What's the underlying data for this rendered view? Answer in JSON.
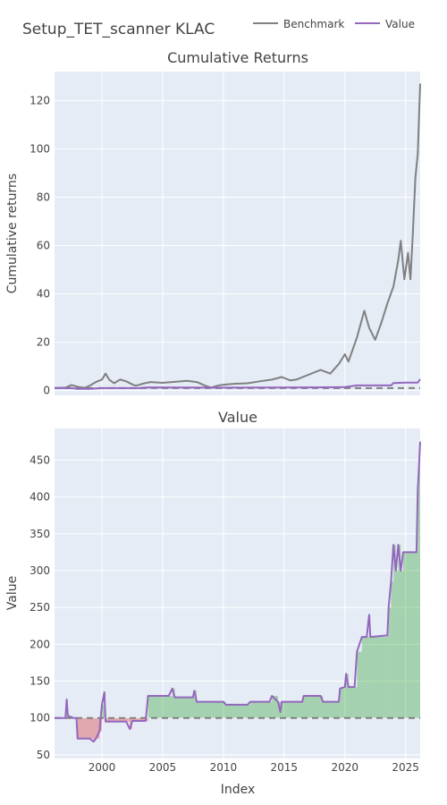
{
  "chart_data": {
    "title": "Setup_TET_scanner KLAC",
    "legend": {
      "placement": "top-right",
      "entries": [
        {
          "label": "Benchmark",
          "color": "#808080"
        },
        {
          "label": "Value",
          "color": "#9467bd"
        }
      ]
    },
    "xlabel": "Index",
    "x_ticks": [
      "2000",
      "2005",
      "2010",
      "2015",
      "2020",
      "2025"
    ],
    "xlim": [
      1996.1,
      2026.2
    ],
    "panels": [
      {
        "type": "line",
        "title": "Cumulative Returns",
        "ylabel": "Cumulative returns",
        "ylim": [
          -2,
          132
        ],
        "y_ticks": [
          0,
          20,
          40,
          60,
          80,
          100,
          120
        ],
        "baseline": 1,
        "grid": true,
        "series": [
          {
            "name": "Benchmark",
            "color": "#808080",
            "points": [
              [
                1996.1,
                1.0
              ],
              [
                1997.0,
                1.2
              ],
              [
                1997.5,
                2.3
              ],
              [
                1998.0,
                1.5
              ],
              [
                1998.6,
                1.1
              ],
              [
                1999.0,
                2.0
              ],
              [
                1999.5,
                3.5
              ],
              [
                2000.0,
                4.5
              ],
              [
                2000.3,
                7.0
              ],
              [
                2000.6,
                4.5
              ],
              [
                2001.0,
                3.0
              ],
              [
                2001.5,
                4.5
              ],
              [
                2002.0,
                3.8
              ],
              [
                2002.5,
                2.5
              ],
              [
                2002.8,
                2.0
              ],
              [
                2003.5,
                3.0
              ],
              [
                2004.0,
                3.5
              ],
              [
                2005.0,
                3.2
              ],
              [
                2006.0,
                3.6
              ],
              [
                2007.0,
                4.0
              ],
              [
                2007.8,
                3.5
              ],
              [
                2008.5,
                2.0
              ],
              [
                2009.0,
                1.2
              ],
              [
                2009.5,
                2.0
              ],
              [
                2010.0,
                2.4
              ],
              [
                2011.0,
                2.8
              ],
              [
                2012.0,
                3.0
              ],
              [
                2013.0,
                3.8
              ],
              [
                2014.0,
                4.5
              ],
              [
                2014.8,
                5.6
              ],
              [
                2015.5,
                4.2
              ],
              [
                2016.0,
                4.5
              ],
              [
                2017.0,
                6.5
              ],
              [
                2018.0,
                8.5
              ],
              [
                2018.8,
                7.0
              ],
              [
                2019.5,
                11.0
              ],
              [
                2020.0,
                15.0
              ],
              [
                2020.3,
                12.0
              ],
              [
                2021.0,
                22.0
              ],
              [
                2021.6,
                33.0
              ],
              [
                2022.0,
                26.0
              ],
              [
                2022.5,
                21.0
              ],
              [
                2023.0,
                28.0
              ],
              [
                2023.5,
                36.0
              ],
              [
                2024.0,
                43.0
              ],
              [
                2024.4,
                54.0
              ],
              [
                2024.6,
                62.0
              ],
              [
                2024.9,
                46.0
              ],
              [
                2025.2,
                57.0
              ],
              [
                2025.4,
                46.0
              ],
              [
                2025.6,
                65.0
              ],
              [
                2025.8,
                88.0
              ],
              [
                2026.0,
                98.0
              ],
              [
                2026.2,
                127.0
              ]
            ]
          },
          {
            "name": "Value",
            "color": "#9467bd",
            "points": [
              [
                1996.1,
                1.0
              ],
              [
                1997.5,
                1.0
              ],
              [
                1998.0,
                0.7
              ],
              [
                1999.0,
                0.7
              ],
              [
                2000.0,
                1.0
              ],
              [
                2003.0,
                1.0
              ],
              [
                2003.8,
                1.3
              ],
              [
                2010.0,
                1.2
              ],
              [
                2017.0,
                1.3
              ],
              [
                2020.0,
                1.4
              ],
              [
                2021.0,
                2.1
              ],
              [
                2023.8,
                2.1
              ],
              [
                2024.0,
                3.1
              ],
              [
                2025.0,
                3.3
              ],
              [
                2026.0,
                3.3
              ],
              [
                2026.2,
                4.7
              ]
            ]
          }
        ]
      },
      {
        "type": "line",
        "title": "Value",
        "ylabel": "Value",
        "ylim": [
          45,
          493
        ],
        "y_ticks": [
          50,
          100,
          150,
          200,
          250,
          300,
          350,
          400,
          450
        ],
        "baseline": 100,
        "grid": true,
        "series": [
          {
            "name": "Value",
            "color": "#9467bd",
            "points": [
              [
                1996.1,
                100
              ],
              [
                1997.0,
                100
              ],
              [
                1997.1,
                125
              ],
              [
                1997.2,
                103
              ],
              [
                1997.6,
                100
              ],
              [
                1997.9,
                100
              ],
              [
                1998.0,
                72
              ],
              [
                1999.0,
                72
              ],
              [
                1999.3,
                68
              ],
              [
                1999.5,
                72
              ],
              [
                1999.8,
                82
              ],
              [
                2000.0,
                118
              ],
              [
                2000.2,
                135
              ],
              [
                2000.3,
                95
              ],
              [
                2002.0,
                95
              ],
              [
                2002.3,
                85
              ],
              [
                2002.5,
                96
              ],
              [
                2003.0,
                96
              ],
              [
                2003.6,
                96
              ],
              [
                2003.8,
                130
              ],
              [
                2005.5,
                130
              ],
              [
                2005.8,
                140
              ],
              [
                2006.0,
                128
              ],
              [
                2007.5,
                128
              ],
              [
                2007.6,
                137
              ],
              [
                2007.8,
                122
              ],
              [
                2010.0,
                122
              ],
              [
                2010.2,
                118
              ],
              [
                2012.0,
                118
              ],
              [
                2012.2,
                122
              ],
              [
                2013.8,
                122
              ],
              [
                2014.0,
                130
              ],
              [
                2014.5,
                122
              ],
              [
                2014.7,
                108
              ],
              [
                2014.8,
                122
              ],
              [
                2016.5,
                122
              ],
              [
                2016.6,
                130
              ],
              [
                2018.0,
                130
              ],
              [
                2018.2,
                122
              ],
              [
                2019.5,
                122
              ],
              [
                2019.6,
                140
              ],
              [
                2020.0,
                142
              ],
              [
                2020.1,
                160
              ],
              [
                2020.3,
                142
              ],
              [
                2020.8,
                142
              ],
              [
                2021.0,
                190
              ],
              [
                2021.4,
                210
              ],
              [
                2021.8,
                210
              ],
              [
                2022.0,
                240
              ],
              [
                2022.1,
                210
              ],
              [
                2023.5,
                212
              ],
              [
                2023.6,
                250
              ],
              [
                2023.8,
                285
              ],
              [
                2024.0,
                335
              ],
              [
                2024.2,
                300
              ],
              [
                2024.4,
                335
              ],
              [
                2024.6,
                300
              ],
              [
                2024.8,
                325
              ],
              [
                2025.9,
                325
              ],
              [
                2026.0,
                410
              ],
              [
                2026.1,
                440
              ],
              [
                2026.2,
                475
              ]
            ]
          }
        ]
      }
    ]
  }
}
